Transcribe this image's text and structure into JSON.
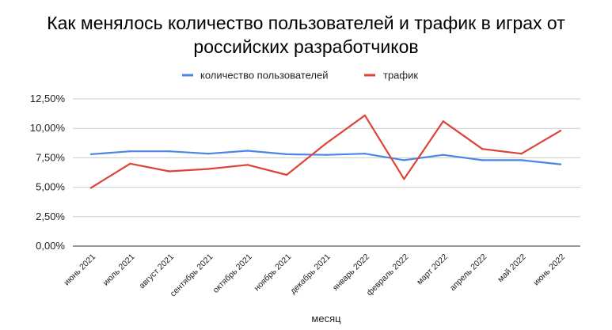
{
  "chart_data": {
    "type": "line",
    "title_lines": [
      "Как менялось количество пользователей и трафик в играх от",
      "российских разработчиков"
    ],
    "xlabel": "месяц",
    "ylabel": "",
    "categories": [
      "июнь 2021",
      "июль 2021",
      "август 2021",
      "сентябрь 2021",
      "октябрь 2021",
      "ноябрь 2021",
      "декабрь 2021",
      "январь 2022",
      "февраль 2022",
      "март 2022",
      "апрель 2022",
      "май 2022",
      "июнь 2022"
    ],
    "ylim": [
      0,
      12.5
    ],
    "yticks": [
      0,
      2.5,
      5,
      7.5,
      10,
      12.5
    ],
    "ytick_labels": [
      "0,00%",
      "2,50%",
      "5,00%",
      "7,50%",
      "10,00%",
      "12,50%"
    ],
    "grid": true,
    "legend_position": "top-center",
    "series": [
      {
        "name": "количество пользователей",
        "color": "#4a86e8",
        "values": [
          7.8,
          8.05,
          8.05,
          7.85,
          8.1,
          7.8,
          7.75,
          7.85,
          7.3,
          7.75,
          7.3,
          7.3,
          6.95
        ]
      },
      {
        "name": "трафик",
        "color": "#db4437",
        "values": [
          4.95,
          7.0,
          6.35,
          6.55,
          6.9,
          6.05,
          8.7,
          11.1,
          5.7,
          10.6,
          8.25,
          7.85,
          9.8
        ]
      }
    ]
  }
}
